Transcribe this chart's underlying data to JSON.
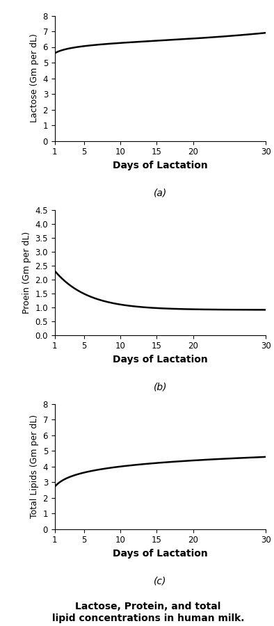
{
  "lactose": {
    "ylim": [
      0,
      8
    ],
    "yticks": [
      0,
      1,
      2,
      3,
      4,
      5,
      6,
      7,
      8
    ],
    "ylabel": "Lactose (Gm per dL)",
    "xlabel": "Days of Lactation",
    "label": "(a)",
    "curve_A": 5.6,
    "curve_B": 0.28,
    "curve_k": 0.12,
    "curve_C": 0.0
  },
  "protein": {
    "ylim": [
      0,
      4.5
    ],
    "yticks": [
      0.0,
      0.5,
      1.0,
      1.5,
      2.0,
      2.5,
      3.0,
      3.5,
      4.0,
      4.5
    ],
    "ylabel": "Proein (Gm per dL)",
    "xlabel": "Days of Lactation",
    "label": "(b)",
    "curve_a": 1.4,
    "curve_k": 0.22,
    "curve_c": 0.9
  },
  "lipids": {
    "ylim": [
      0,
      8
    ],
    "yticks": [
      0,
      1,
      2,
      3,
      4,
      5,
      6,
      7,
      8
    ],
    "ylabel": "Total Lipids (Gm per dL)",
    "xlabel": "Days of Lactation",
    "label": "(c)",
    "curve_A": 2.7,
    "curve_B": 0.56,
    "curve_k": 0.18,
    "curve_C": 0.0
  },
  "main_title_line1": "Lactose, Protein, and total",
  "main_title_line2": "lipid concentrations in human milk.",
  "xticks": [
    1,
    5,
    10,
    15,
    20,
    30
  ],
  "xticklabels": [
    "1",
    "5",
    "10",
    "15",
    "20",
    "30"
  ],
  "xlim": [
    1,
    30
  ],
  "line_color": "#000000",
  "line_width": 1.8,
  "bg_color": "#ffffff",
  "xlabel_fontsize": 10,
  "ylabel_fontsize": 9,
  "tick_fontsize": 8.5,
  "label_fontsize": 10,
  "title_fontsize": 10
}
